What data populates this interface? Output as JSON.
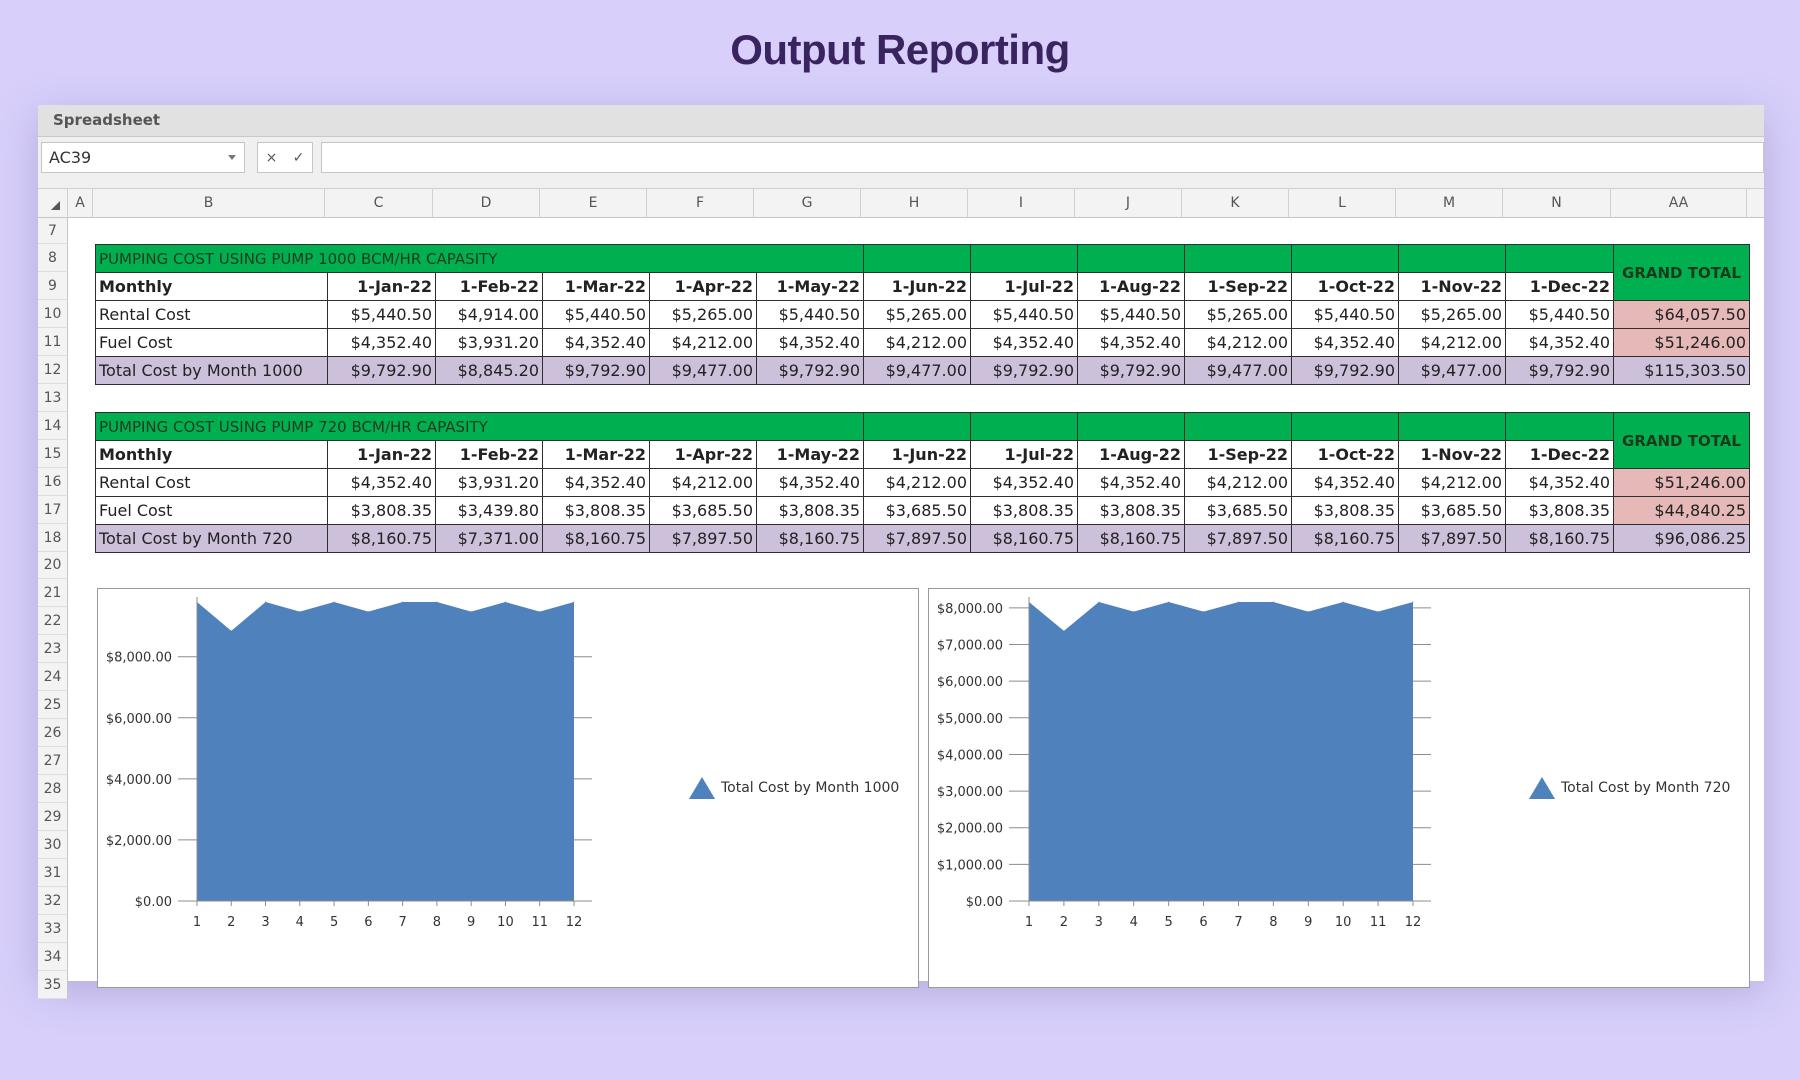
{
  "page_title": "Output Reporting",
  "window_title": "Spreadsheet",
  "name_box": "AC39",
  "formula_buttons": {
    "cancel": "×",
    "confirm": "✓"
  },
  "formula_value": "",
  "columns": [
    "A",
    "B",
    "C",
    "D",
    "E",
    "F",
    "G",
    "H",
    "I",
    "J",
    "K",
    "L",
    "M",
    "N",
    "AA"
  ],
  "rows": [
    "7",
    "8",
    "9",
    "10",
    "11",
    "12",
    "13",
    "14",
    "15",
    "16",
    "17",
    "18",
    "20",
    "21",
    "22",
    "23",
    "24",
    "25",
    "26",
    "27",
    "28",
    "29",
    "30",
    "31",
    "32",
    "33",
    "34",
    "35"
  ],
  "tables": [
    {
      "title": "PUMPING COST USING PUMP 1000 BCM/HR CAPASITY",
      "grand_total_label": "GRAND TOTAL",
      "header_label": "Monthly",
      "months": [
        "1-Jan-22",
        "1-Feb-22",
        "1-Mar-22",
        "1-Apr-22",
        "1-May-22",
        "1-Jun-22",
        "1-Jul-22",
        "1-Aug-22",
        "1-Sep-22",
        "1-Oct-22",
        "1-Nov-22",
        "1-Dec-22"
      ],
      "rows": [
        {
          "label": "Rental Cost",
          "values": [
            "$5,440.50",
            "$4,914.00",
            "$5,440.50",
            "$5,265.00",
            "$5,440.50",
            "$5,265.00",
            "$5,440.50",
            "$5,440.50",
            "$5,265.00",
            "$5,440.50",
            "$5,265.00",
            "$5,440.50"
          ],
          "total": "$64,057.50"
        },
        {
          "label": "Fuel Cost",
          "values": [
            "$4,352.40",
            "$3,931.20",
            "$4,352.40",
            "$4,212.00",
            "$4,352.40",
            "$4,212.00",
            "$4,352.40",
            "$4,352.40",
            "$4,212.00",
            "$4,352.40",
            "$4,212.00",
            "$4,352.40"
          ],
          "total": "$51,246.00"
        },
        {
          "label": "Total Cost by Month 1000",
          "values": [
            "$9,792.90",
            "$8,845.20",
            "$9,792.90",
            "$9,477.00",
            "$9,792.90",
            "$9,477.00",
            "$9,792.90",
            "$9,792.90",
            "$9,477.00",
            "$9,792.90",
            "$9,477.00",
            "$9,792.90"
          ],
          "total": "$115,303.50"
        }
      ]
    },
    {
      "title": "PUMPING COST USING PUMP 720 BCM/HR CAPASITY",
      "grand_total_label": "GRAND TOTAL",
      "header_label": "Monthly",
      "months": [
        "1-Jan-22",
        "1-Feb-22",
        "1-Mar-22",
        "1-Apr-22",
        "1-May-22",
        "1-Jun-22",
        "1-Jul-22",
        "1-Aug-22",
        "1-Sep-22",
        "1-Oct-22",
        "1-Nov-22",
        "1-Dec-22"
      ],
      "rows": [
        {
          "label": "Rental Cost",
          "values": [
            "$4,352.40",
            "$3,931.20",
            "$4,352.40",
            "$4,212.00",
            "$4,352.40",
            "$4,212.00",
            "$4,352.40",
            "$4,352.40",
            "$4,212.00",
            "$4,352.40",
            "$4,212.00",
            "$4,352.40"
          ],
          "total": "$51,246.00"
        },
        {
          "label": "Fuel Cost",
          "values": [
            "$3,808.35",
            "$3,439.80",
            "$3,808.35",
            "$3,685.50",
            "$3,808.35",
            "$3,685.50",
            "$3,808.35",
            "$3,808.35",
            "$3,685.50",
            "$3,808.35",
            "$3,685.50",
            "$3,808.35"
          ],
          "total": "$44,840.25"
        },
        {
          "label": "Total Cost by Month 720",
          "values": [
            "$8,160.75",
            "$7,371.00",
            "$8,160.75",
            "$7,897.50",
            "$8,160.75",
            "$7,897.50",
            "$8,160.75",
            "$8,160.75",
            "$7,897.50",
            "$8,160.75",
            "$7,897.50",
            "$8,160.75"
          ],
          "total": "$96,086.25"
        }
      ]
    }
  ],
  "chart_data": [
    {
      "type": "area",
      "x": [
        1,
        2,
        3,
        4,
        5,
        6,
        7,
        8,
        9,
        10,
        11,
        12
      ],
      "series": [
        {
          "name": "Total Cost by Month 1000",
          "values": [
            9792.9,
            8845.2,
            9792.9,
            9477.0,
            9792.9,
            9477.0,
            9792.9,
            9792.9,
            9477.0,
            9792.9,
            9477.0,
            9792.9
          ]
        }
      ],
      "ylim": [
        0,
        9792.9
      ],
      "yticks": [
        0,
        2000,
        4000,
        6000,
        8000
      ],
      "ytick_labels": [
        "$0.00",
        "$2,000.00",
        "$4,000.00",
        "$6,000.00",
        "$8,000.00"
      ],
      "legend": "right",
      "color": "#4f81bd"
    },
    {
      "type": "area",
      "x": [
        1,
        2,
        3,
        4,
        5,
        6,
        7,
        8,
        9,
        10,
        11,
        12
      ],
      "series": [
        {
          "name": "Total Cost by Month 720",
          "values": [
            8160.75,
            7371.0,
            8160.75,
            7897.5,
            8160.75,
            7897.5,
            8160.75,
            8160.75,
            7897.5,
            8160.75,
            7897.5,
            8160.75
          ]
        }
      ],
      "ylim": [
        0,
        8160.75
      ],
      "yticks": [
        0,
        1000,
        2000,
        3000,
        4000,
        5000,
        6000,
        7000,
        8000
      ],
      "ytick_labels": [
        "$0.00",
        "$1,000.00",
        "$2,000.00",
        "$3,000.00",
        "$4,000.00",
        "$5,000.00",
        "$6,000.00",
        "$7,000.00",
        "$8,000.00"
      ],
      "legend": "right",
      "color": "#4f81bd"
    }
  ]
}
